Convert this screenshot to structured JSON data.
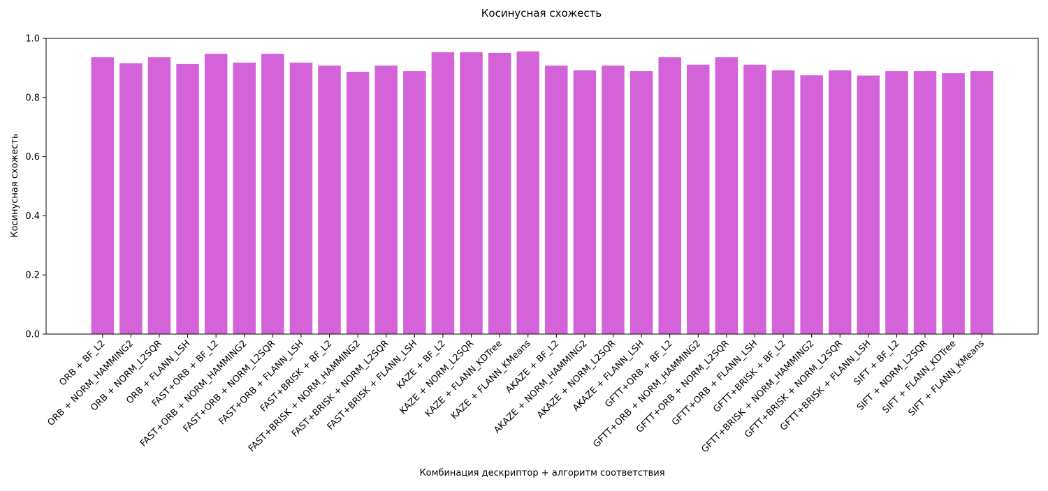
{
  "chart_data": {
    "type": "bar",
    "title": "Косинусная схожесть",
    "xlabel": "Комбинация дескриптор + алгоритм соответствия",
    "ylabel": "Косинусная схожесть",
    "ylim": [
      0,
      1.0
    ],
    "yticks": [
      0.0,
      0.2,
      0.4,
      0.6,
      0.8,
      1.0
    ],
    "grid": false,
    "bar_color": "#d462d8",
    "categories": [
      "ORB + BF_L2",
      "ORB + NORM_HAMMING2",
      "ORB + NORM_L2SQR",
      "ORB + FLANN_LSH",
      "FAST+ORB + BF_L2",
      "FAST+ORB + NORM_HAMMING2",
      "FAST+ORB + NORM_L2SQR",
      "FAST+ORB + FLANN_LSH",
      "FAST+BRISK + BF_L2",
      "FAST+BRISK + NORM_HAMMING2",
      "FAST+BRISK + NORM_L2SQR",
      "FAST+BRISK + FLANN_LSH",
      "KAZE + BF_L2",
      "KAZE + NORM_L2SQR",
      "KAZE + FLANN_KDTree",
      "KAZE + FLANN_KMeans",
      "AKAZE + BF_L2",
      "AKAZE + NORM_HAMMING2",
      "AKAZE + NORM_L2SQR",
      "AKAZE + FLANN_LSH",
      "GFTT+ORB + BF_L2",
      "GFTT+ORB + NORM_HAMMING2",
      "GFTT+ORB + NORM_L2SQR",
      "GFTT+ORB + FLANN_LSH",
      "GFTT+BRISK + BF_L2",
      "GFTT+BRISK + NORM_HAMMING2",
      "GFTT+BRISK + NORM_L2SQR",
      "GFTT+BRISK + FLANN_LSH",
      "SIFT + BF_L2",
      "SIFT + NORM_L2SQR",
      "SIFT + FLANN_KDTree",
      "SIFT + FLANN_KMeans"
    ],
    "values": [
      0.936,
      0.916,
      0.936,
      0.913,
      0.948,
      0.918,
      0.948,
      0.918,
      0.908,
      0.887,
      0.908,
      0.889,
      0.953,
      0.953,
      0.951,
      0.956,
      0.908,
      0.892,
      0.908,
      0.889,
      0.936,
      0.911,
      0.936,
      0.911,
      0.892,
      0.875,
      0.892,
      0.874,
      0.889,
      0.889,
      0.882,
      0.889
    ]
  }
}
